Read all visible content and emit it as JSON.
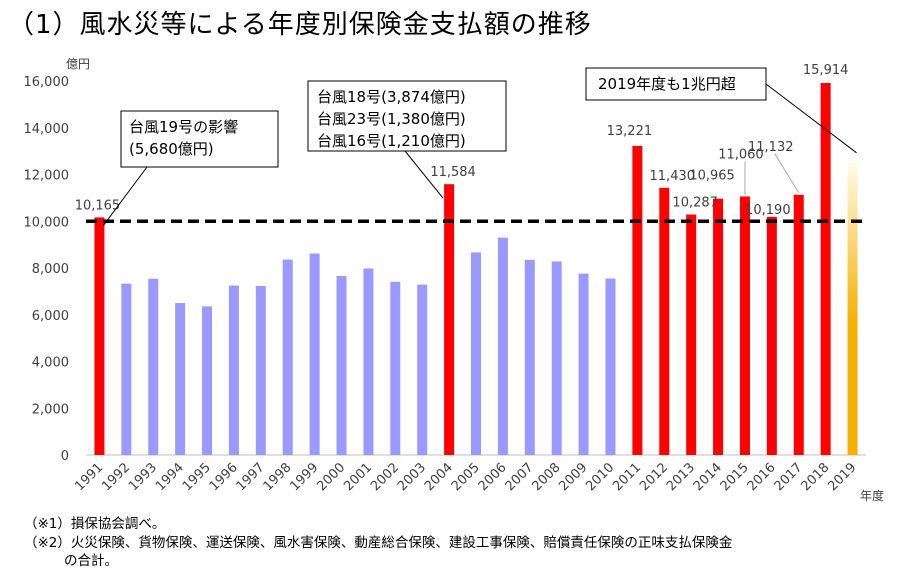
{
  "title": "（1）風水災等による年度別保険金支払額の推移",
  "footnotes": [
    "（※1）損保協会調べ。",
    "（※2）火災保険、貨物保険、運送保険、風水害保険、動産総合保険、建設工事保険、賠償責任保険の正味支払保険金",
    "の合計。"
  ],
  "chart_data": {
    "type": "bar",
    "ylabel": "億円",
    "xlabel": "年度",
    "ylim": [
      0,
      16000
    ],
    "ytick_step": 2000,
    "ytick_labels": [
      "0",
      "2,000",
      "4,000",
      "6,000",
      "8,000",
      "10,000",
      "12,000",
      "14,000",
      "16,000"
    ],
    "grid": false,
    "reference_line": 10000,
    "categories": [
      "1991",
      "1992",
      "1993",
      "1994",
      "1995",
      "1996",
      "1997",
      "1998",
      "1999",
      "2000",
      "2001",
      "2002",
      "2003",
      "2004",
      "2005",
      "2006",
      "2007",
      "2008",
      "2009",
      "2010",
      "2011",
      "2012",
      "2013",
      "2014",
      "2015",
      "2016",
      "2017",
      "2018",
      "2019"
    ],
    "values": [
      10165,
      7330,
      7540,
      6500,
      6360,
      7250,
      7230,
      8360,
      8620,
      7660,
      7980,
      7410,
      7290,
      11584,
      8670,
      9300,
      8350,
      8280,
      7760,
      7550,
      13221,
      11430,
      10287,
      10965,
      11060,
      10190,
      11132,
      15914,
      12500
    ],
    "highlight": [
      true,
      false,
      false,
      false,
      false,
      false,
      false,
      false,
      false,
      false,
      false,
      false,
      false,
      true,
      false,
      false,
      false,
      false,
      false,
      false,
      true,
      true,
      true,
      true,
      true,
      true,
      true,
      true,
      false
    ],
    "estimated": [
      false,
      false,
      false,
      false,
      false,
      false,
      false,
      false,
      false,
      false,
      false,
      false,
      false,
      false,
      false,
      false,
      false,
      false,
      false,
      false,
      false,
      false,
      false,
      false,
      false,
      false,
      false,
      false,
      true
    ],
    "data_labels": [
      {
        "index": 0,
        "text": "10,165"
      },
      {
        "index": 13,
        "text": "11,584"
      },
      {
        "index": 20,
        "text": "13,221"
      },
      {
        "index": 21,
        "text": "11,430"
      },
      {
        "index": 22,
        "text": "10,287"
      },
      {
        "index": 23,
        "text": "10,965"
      },
      {
        "index": 24,
        "text": "11,060"
      },
      {
        "index": 25,
        "text": "10,190"
      },
      {
        "index": 26,
        "text": "11,132"
      },
      {
        "index": 27,
        "text": "15,914"
      }
    ],
    "callouts": [
      {
        "lines": [
          "台風19号の影響",
          "(5,680億円)"
        ],
        "target_index": 0
      },
      {
        "lines": [
          "台風18号(3,874億円)",
          "台風23号(1,380億円)",
          "台風16号(1,210億円)"
        ],
        "target_index": 13
      },
      {
        "lines": [
          "2019年度も1兆円超"
        ],
        "target_index": 28
      }
    ],
    "colors": {
      "highlight": "#ff0000",
      "normal": "#9999ff",
      "estimate_top": "#fffbe6",
      "estimate_bottom": "#f5b000",
      "refline": "#000000"
    }
  }
}
